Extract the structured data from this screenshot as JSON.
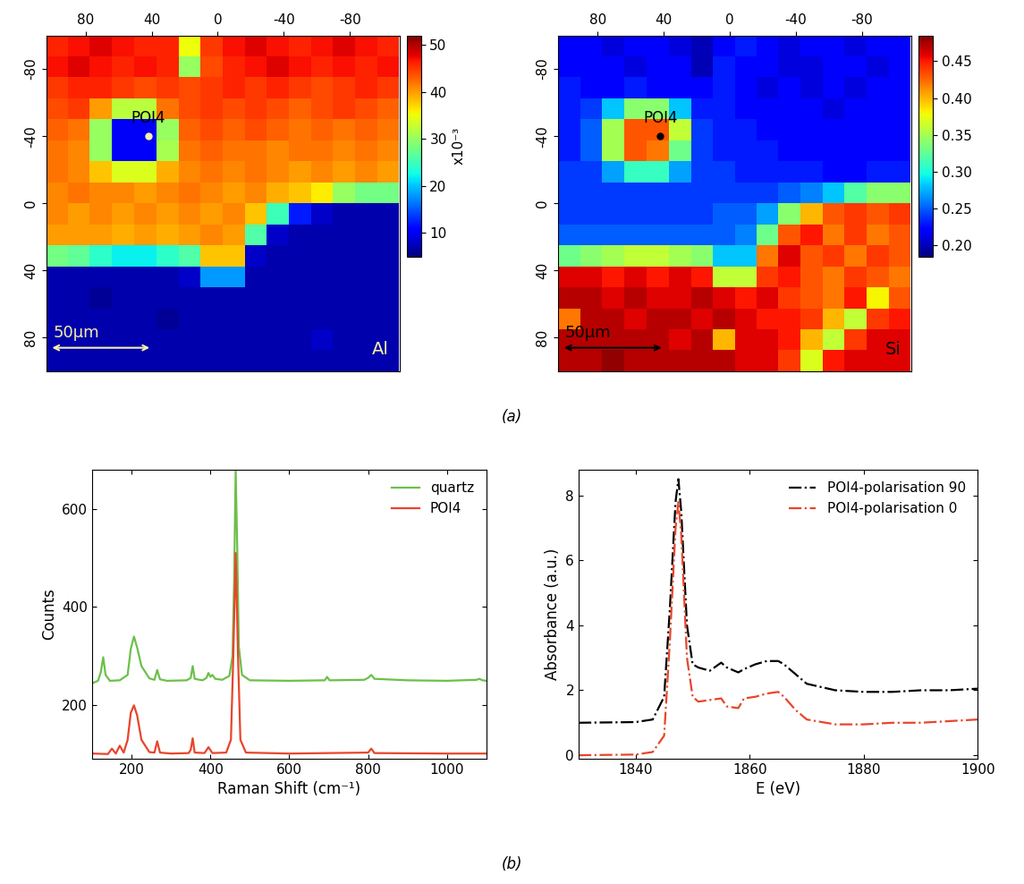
{
  "chart_data": [
    {
      "type": "heatmap",
      "label": "Al",
      "scale_bar": "50μm",
      "x": [
        97,
        84,
        71,
        57,
        44,
        30,
        17,
        4,
        -10,
        -23,
        -36,
        -50,
        -63,
        -76,
        -90,
        -103
      ],
      "y": [
        -94,
        -81,
        -69,
        -56,
        -44,
        -31,
        -19,
        -6,
        6,
        19,
        31,
        44,
        56,
        69,
        81,
        94
      ],
      "cells": [
        [
          46,
          47,
          48,
          47,
          46,
          46,
          35,
          45,
          47,
          48,
          47,
          46,
          47,
          48,
          47,
          46
        ],
        [
          47,
          48,
          47,
          46,
          47,
          46,
          30,
          44,
          46,
          47,
          48,
          47,
          46,
          47,
          46,
          47
        ],
        [
          45,
          46,
          46,
          45,
          44,
          45,
          44,
          45,
          46,
          45,
          46,
          45,
          44,
          45,
          46,
          45
        ],
        [
          44,
          45,
          40,
          32,
          32,
          42,
          44,
          45,
          44,
          45,
          44,
          43,
          44,
          45,
          44,
          43
        ],
        [
          43,
          42,
          30,
          10,
          10,
          30,
          43,
          44,
          43,
          44,
          43,
          42,
          43,
          42,
          43,
          42
        ],
        [
          42,
          41,
          30,
          10,
          10,
          31,
          42,
          43,
          42,
          42,
          41,
          42,
          42,
          41,
          42,
          41
        ],
        [
          42,
          41,
          38,
          34,
          34,
          39,
          41,
          42,
          41,
          42,
          41,
          40,
          41,
          40,
          41,
          40
        ],
        [
          41,
          42,
          41,
          41,
          40,
          41,
          42,
          41,
          40,
          41,
          39,
          38,
          36,
          30,
          28,
          28
        ],
        [
          41,
          40,
          41,
          40,
          41,
          40,
          41,
          40,
          41,
          38,
          25,
          12,
          8,
          7,
          7,
          7
        ],
        [
          40,
          40,
          40,
          39,
          40,
          39,
          40,
          41,
          40,
          26,
          8,
          7,
          7,
          7,
          7,
          7
        ],
        [
          28,
          27,
          24,
          22,
          22,
          24,
          26,
          38,
          38,
          8,
          7,
          7,
          7,
          7,
          7,
          7
        ],
        [
          7,
          7,
          7,
          7,
          7,
          7,
          8,
          18,
          18,
          7,
          7,
          7,
          7,
          7,
          7,
          7
        ],
        [
          7,
          7,
          6,
          7,
          7,
          7,
          7,
          7,
          7,
          7,
          7,
          7,
          7,
          7,
          7,
          7
        ],
        [
          7,
          7,
          7,
          7,
          7,
          6,
          7,
          7,
          7,
          7,
          7,
          7,
          7,
          7,
          7,
          7
        ],
        [
          7,
          7,
          7,
          7,
          7,
          7,
          7,
          7,
          7,
          7,
          7,
          7,
          8,
          7,
          7,
          7
        ],
        [
          7,
          7,
          7,
          7,
          7,
          7,
          7,
          7,
          7,
          7,
          7,
          7,
          7,
          7,
          7,
          7
        ]
      ],
      "xlim": [
        104,
        -110
      ],
      "ylim": [
        100,
        -100
      ],
      "xticks": [
        80,
        40,
        0,
        -40,
        -80
      ],
      "yticks": [
        -80,
        -40,
        0,
        40,
        80
      ],
      "colorbar": {
        "label": "x10⁻³",
        "range": [
          5,
          52
        ],
        "ticks": [
          10,
          20,
          30,
          40,
          50
        ]
      },
      "annotations": [
        {
          "text": "POI4",
          "x": 42,
          "y": -40,
          "color": "#f7f0a8"
        }
      ]
    },
    {
      "type": "heatmap",
      "label": "Si",
      "scale_bar": "50μm",
      "x": [
        97,
        84,
        71,
        57,
        44,
        30,
        17,
        4,
        -10,
        -23,
        -36,
        -50,
        -63,
        -76,
        -90,
        -103
      ],
      "y": [
        -94,
        -81,
        -69,
        -56,
        -44,
        -31,
        -19,
        -6,
        6,
        19,
        31,
        44,
        56,
        69,
        81,
        94
      ],
      "cells": [
        [
          0.22,
          0.22,
          0.21,
          0.22,
          0.22,
          0.21,
          0.2,
          0.22,
          0.23,
          0.22,
          0.21,
          0.22,
          0.22,
          0.21,
          0.22,
          0.22
        ],
        [
          0.22,
          0.22,
          0.22,
          0.21,
          0.22,
          0.22,
          0.2,
          0.23,
          0.22,
          0.22,
          0.21,
          0.21,
          0.22,
          0.22,
          0.21,
          0.22
        ],
        [
          0.23,
          0.22,
          0.22,
          0.23,
          0.22,
          0.22,
          0.22,
          0.23,
          0.22,
          0.21,
          0.22,
          0.21,
          0.22,
          0.21,
          0.22,
          0.22
        ],
        [
          0.23,
          0.24,
          0.28,
          0.34,
          0.34,
          0.28,
          0.23,
          0.23,
          0.22,
          0.22,
          0.22,
          0.22,
          0.21,
          0.22,
          0.22,
          0.22
        ],
        [
          0.23,
          0.25,
          0.35,
          0.43,
          0.43,
          0.36,
          0.24,
          0.23,
          0.23,
          0.22,
          0.22,
          0.22,
          0.22,
          0.22,
          0.22,
          0.22
        ],
        [
          0.23,
          0.25,
          0.35,
          0.43,
          0.42,
          0.33,
          0.24,
          0.23,
          0.23,
          0.23,
          0.22,
          0.22,
          0.22,
          0.22,
          0.22,
          0.22
        ],
        [
          0.24,
          0.24,
          0.27,
          0.31,
          0.31,
          0.27,
          0.24,
          0.24,
          0.23,
          0.23,
          0.23,
          0.23,
          0.22,
          0.22,
          0.23,
          0.23
        ],
        [
          0.24,
          0.24,
          0.24,
          0.24,
          0.24,
          0.24,
          0.24,
          0.24,
          0.24,
          0.24,
          0.25,
          0.26,
          0.28,
          0.32,
          0.34,
          0.34
        ],
        [
          0.24,
          0.24,
          0.24,
          0.24,
          0.24,
          0.24,
          0.24,
          0.25,
          0.25,
          0.27,
          0.34,
          0.4,
          0.43,
          0.44,
          0.43,
          0.44
        ],
        [
          0.25,
          0.25,
          0.25,
          0.25,
          0.25,
          0.25,
          0.25,
          0.25,
          0.26,
          0.33,
          0.43,
          0.45,
          0.42,
          0.44,
          0.42,
          0.43
        ],
        [
          0.33,
          0.34,
          0.35,
          0.36,
          0.36,
          0.35,
          0.34,
          0.28,
          0.28,
          0.42,
          0.46,
          0.43,
          0.44,
          0.42,
          0.44,
          0.43
        ],
        [
          0.46,
          0.46,
          0.45,
          0.46,
          0.45,
          0.46,
          0.45,
          0.36,
          0.36,
          0.44,
          0.45,
          0.43,
          0.42,
          0.44,
          0.43,
          0.42
        ],
        [
          0.47,
          0.47,
          0.46,
          0.47,
          0.46,
          0.46,
          0.47,
          0.46,
          0.45,
          0.46,
          0.44,
          0.43,
          0.42,
          0.45,
          0.38,
          0.43
        ],
        [
          0.42,
          0.47,
          0.47,
          0.46,
          0.47,
          0.47,
          0.46,
          0.47,
          0.46,
          0.45,
          0.45,
          0.44,
          0.4,
          0.36,
          0.44,
          0.45
        ],
        [
          0.47,
          0.47,
          0.47,
          0.47,
          0.47,
          0.46,
          0.47,
          0.4,
          0.46,
          0.46,
          0.45,
          0.4,
          0.36,
          0.44,
          0.46,
          0.46
        ],
        [
          0.47,
          0.47,
          0.48,
          0.47,
          0.47,
          0.47,
          0.47,
          0.47,
          0.46,
          0.46,
          0.44,
          0.37,
          0.45,
          0.46,
          0.46,
          0.46
        ]
      ],
      "xlim": [
        104,
        -110
      ],
      "ylim": [
        100,
        -100
      ],
      "xticks": [
        80,
        40,
        0,
        -40,
        -80
      ],
      "yticks": [
        -80,
        -40,
        0,
        40,
        80
      ],
      "colorbar": {
        "range": [
          0.185,
          0.485
        ],
        "ticks": [
          {
            "value": 0.2,
            "label": "0.20"
          },
          0.25,
          {
            "value": 0.3,
            "label": "0.30"
          },
          0.35,
          {
            "value": 0.4,
            "label": "0.40"
          },
          0.45
        ]
      },
      "annotations": [
        {
          "text": "POI4",
          "x": 42,
          "y": -40,
          "color": "#000000"
        }
      ]
    },
    {
      "type": "line",
      "x_label": "Raman Shift (cm⁻¹)",
      "y_label": "Counts",
      "xlim": [
        100,
        1100
      ],
      "ylim": [
        92,
        680
      ],
      "xticks": [
        200,
        400,
        600,
        800,
        1000
      ],
      "yticks": [
        200,
        400,
        600
      ],
      "legend": "upper right",
      "series": [
        {
          "name": "quartz",
          "color": "#6cc04a",
          "line_style": "solid",
          "x": [
            100,
            115,
            122,
            128,
            134,
            145,
            170,
            190,
            198,
            206,
            214,
            225,
            245,
            258,
            265,
            272,
            290,
            340,
            350,
            355,
            360,
            380,
            390,
            395,
            400,
            405,
            412,
            430,
            448,
            456,
            460,
            464,
            468,
            472,
            480,
            500,
            600,
            690,
            696,
            702,
            790,
            800,
            808,
            816,
            900,
            1000,
            1075,
            1082,
            1090,
            1100
          ],
          "values": [
            245,
            250,
            268,
            298,
            262,
            250,
            251,
            262,
            315,
            340,
            318,
            280,
            255,
            252,
            272,
            253,
            250,
            251,
            256,
            280,
            254,
            251,
            256,
            266,
            258,
            262,
            254,
            252,
            260,
            300,
            450,
            680,
            520,
            320,
            262,
            251,
            250,
            251,
            258,
            251,
            252,
            256,
            262,
            254,
            251,
            250,
            252,
            254,
            251,
            250
          ]
        },
        {
          "name": "POI4",
          "color": "#e8452c",
          "line_style": "solid",
          "x": [
            100,
            140,
            150,
            160,
            170,
            180,
            190,
            198,
            206,
            214,
            225,
            245,
            258,
            265,
            272,
            300,
            345,
            350,
            355,
            360,
            385,
            395,
            405,
            440,
            452,
            458,
            464,
            470,
            476,
            490,
            600,
            800,
            808,
            816,
            1000,
            1100
          ],
          "values": [
            102,
            101,
            112,
            102,
            118,
            104,
            130,
            185,
            200,
            180,
            130,
            105,
            104,
            127,
            104,
            102,
            103,
            110,
            133,
            104,
            103,
            115,
            103,
            104,
            130,
            300,
            510,
            300,
            130,
            104,
            102,
            104,
            112,
            103,
            102,
            102
          ]
        }
      ]
    },
    {
      "type": "line",
      "x_label": "E (eV)",
      "y_label": "Absorbance (a.u.)",
      "xlim": [
        1830,
        1900
      ],
      "ylim": [
        -0.1,
        8.8
      ],
      "xticks": [
        1840,
        1860,
        1880,
        1900
      ],
      "yticks": [
        0,
        2,
        4,
        6,
        8
      ],
      "legend": "upper right",
      "series": [
        {
          "name": "POI4-polarisation 90",
          "color": "#000000",
          "line_style": "dashdot",
          "x": [
            1830,
            1840,
            1843,
            1845,
            1846,
            1847,
            1847.5,
            1848,
            1849,
            1850,
            1851,
            1853,
            1855,
            1856,
            1858,
            1859,
            1861,
            1863,
            1865,
            1866,
            1868,
            1870,
            1875,
            1880,
            1885,
            1890,
            1895,
            1900
          ],
          "values": [
            1.0,
            1.02,
            1.1,
            1.8,
            4.5,
            7.8,
            8.5,
            7.5,
            4.0,
            2.8,
            2.7,
            2.6,
            2.85,
            2.7,
            2.55,
            2.65,
            2.8,
            2.9,
            2.9,
            2.8,
            2.5,
            2.2,
            2.0,
            1.95,
            1.95,
            2.0,
            2.0,
            2.05
          ]
        },
        {
          "name": "POI4-polarisation 0",
          "color": "#e8452c",
          "line_style": "dashdot",
          "x": [
            1830,
            1840,
            1843,
            1845,
            1846,
            1847,
            1847.5,
            1848,
            1849,
            1850,
            1851,
            1853,
            1855,
            1856,
            1858,
            1859,
            1861,
            1863,
            1865,
            1866,
            1868,
            1870,
            1875,
            1880,
            1885,
            1890,
            1895,
            1900
          ],
          "values": [
            0.0,
            0.02,
            0.1,
            0.6,
            3.5,
            7.0,
            7.8,
            6.8,
            3.0,
            1.8,
            1.65,
            1.7,
            1.75,
            1.5,
            1.45,
            1.75,
            1.8,
            1.9,
            1.95,
            1.8,
            1.4,
            1.1,
            0.95,
            0.95,
            1.0,
            1.0,
            1.05,
            1.1
          ]
        }
      ]
    }
  ],
  "panel_labels": [
    "(a)",
    "(b)"
  ]
}
